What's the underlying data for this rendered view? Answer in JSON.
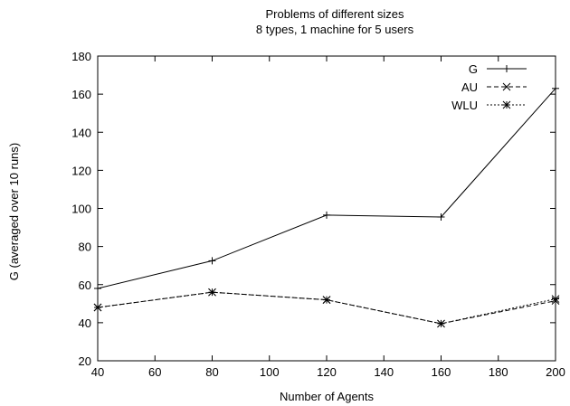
{
  "chart_data": {
    "type": "line",
    "title": "Problems of different sizes",
    "subtitle": "8 types, 1 machine for 5 users",
    "xlabel": "Number of Agents",
    "ylabel": "G (averaged over 10 runs)",
    "xlim": [
      40,
      200
    ],
    "ylim": [
      20,
      180
    ],
    "xticks": [
      40,
      60,
      80,
      100,
      120,
      140,
      160,
      180,
      200
    ],
    "yticks": [
      20,
      40,
      60,
      80,
      100,
      120,
      140,
      160,
      180
    ],
    "grid": false,
    "legend_position": "top-right",
    "x": [
      40,
      80,
      120,
      160,
      200
    ],
    "series": [
      {
        "name": "G",
        "marker": "plus",
        "dash": "solid",
        "values": [
          58,
          72.5,
          96.5,
          95.5,
          163
        ]
      },
      {
        "name": "AU",
        "marker": "cross",
        "dash": "dashed",
        "values": [
          48,
          56,
          52,
          39.5,
          51.5
        ]
      },
      {
        "name": "WLU",
        "marker": "asterisk",
        "dash": "dotted",
        "values": [
          48,
          56,
          52,
          39.5,
          52.5
        ]
      }
    ]
  }
}
